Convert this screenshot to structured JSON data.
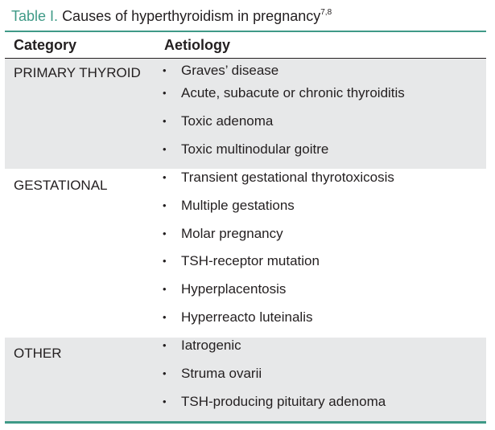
{
  "caption": {
    "label": "Table I.",
    "title": "Causes of hyperthyroidism in pregnancy",
    "refs": "7,8"
  },
  "header": {
    "category": "Category",
    "aetiology": "Aetiology"
  },
  "groups": [
    {
      "category": "PRIMARY THYROID",
      "items": [
        "Graves’ disease",
        "Acute, subacute or chronic thyroiditis",
        "Toxic adenoma",
        "Toxic multinodular goitre"
      ]
    },
    {
      "category": "GESTATIONAL",
      "items": [
        "Transient gestational thyrotoxicosis",
        "Multiple gestations",
        "Molar pregnancy",
        "TSH-receptor mutation",
        "Hyperplacentosis",
        "Hyperreacto luteinalis"
      ]
    },
    {
      "category": "OTHER",
      "items": [
        "Iatrogenic",
        "Struma ovarii",
        "TSH-producing pituitary adenoma"
      ]
    }
  ],
  "bullet": "•",
  "colors": {
    "accent": "#3f9a87",
    "row_shade": "#e7e8e9"
  }
}
